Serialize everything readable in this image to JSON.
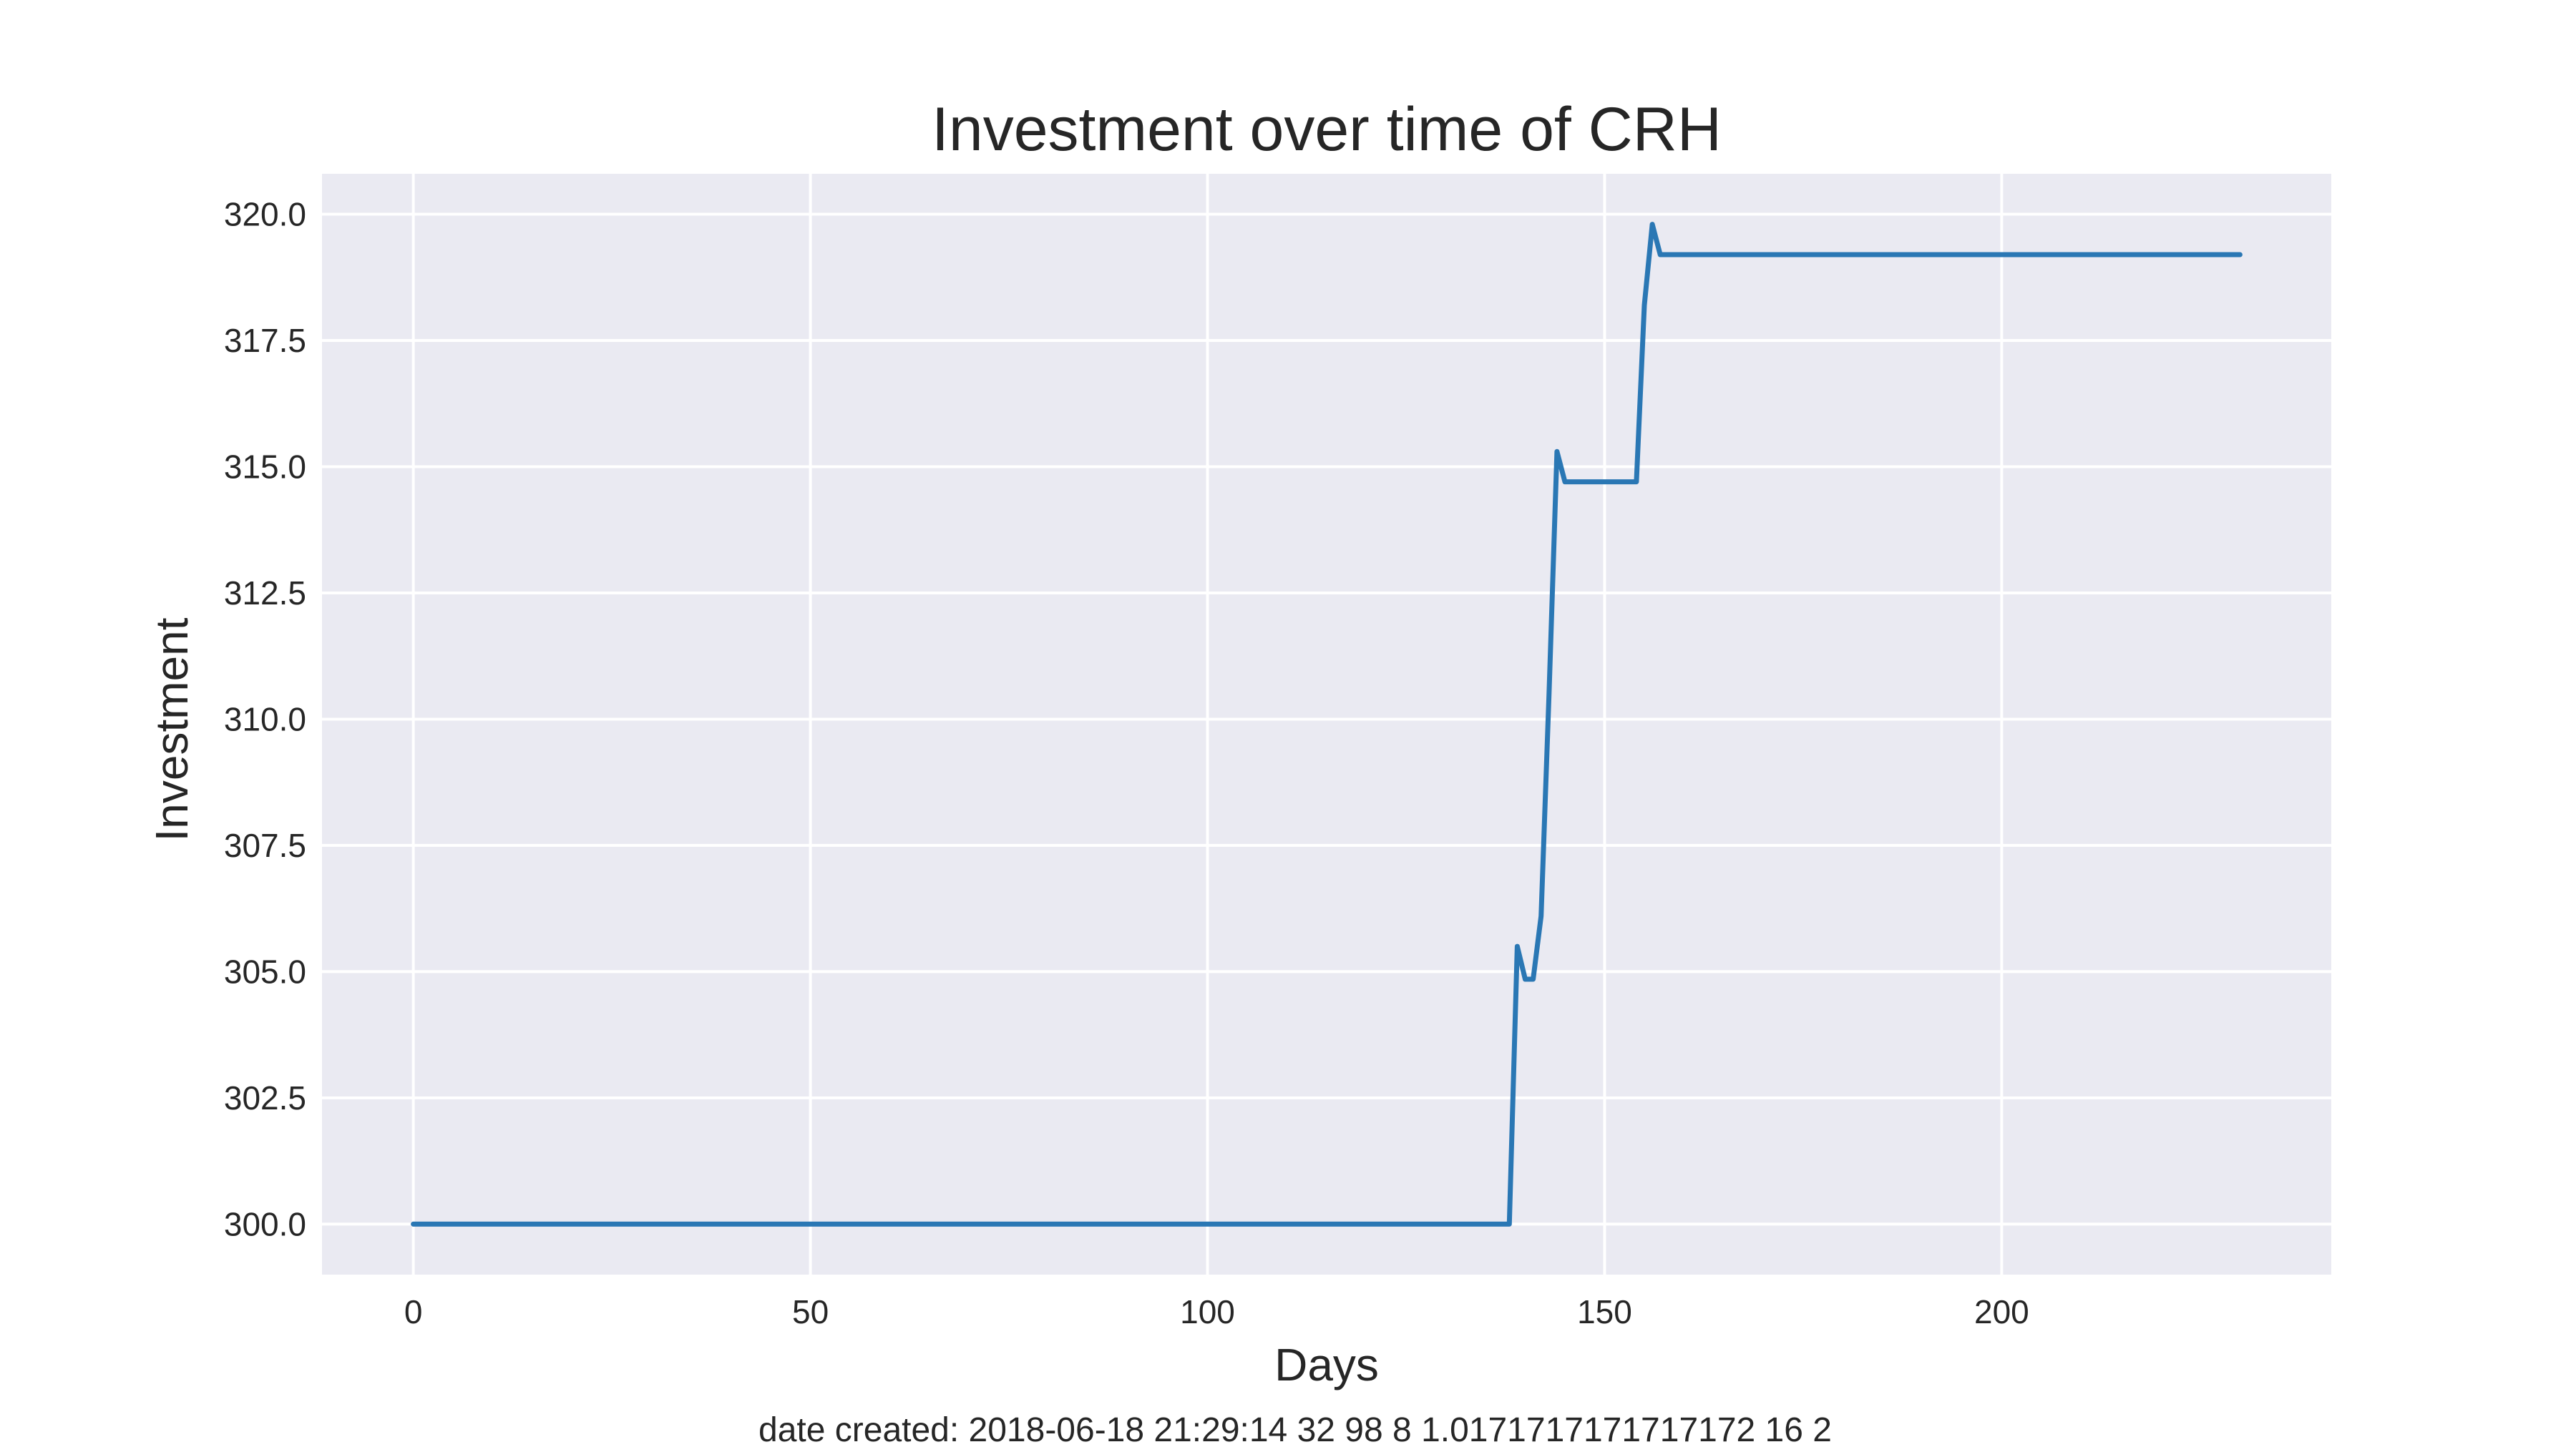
{
  "chart_data": {
    "type": "line",
    "title": "Investment over time of CRH",
    "xlabel": "Days",
    "ylabel": "Investment",
    "xlim": [
      -11.5,
      241.5
    ],
    "ylim": [
      299.0,
      320.8
    ],
    "xticks": [
      0,
      50,
      100,
      150,
      200
    ],
    "yticks": [
      300.0,
      302.5,
      305.0,
      307.5,
      310.0,
      312.5,
      315.0,
      317.5,
      320.0
    ],
    "grid": true,
    "legend": "none",
    "series": [
      {
        "color": "#2a77b4",
        "x": [
          0,
          138,
          139,
          140,
          141,
          142,
          143,
          144,
          145,
          150,
          154,
          155,
          156,
          157,
          230
        ],
        "y": [
          300.0,
          300.0,
          305.5,
          304.85,
          304.85,
          306.1,
          310.5,
          315.3,
          314.7,
          314.7,
          314.7,
          318.2,
          319.8,
          319.2,
          319.2
        ]
      }
    ],
    "annotation": "date created: 2018-06-18 21:29:14 32 98 8 1.0171717171717172 16 2"
  }
}
